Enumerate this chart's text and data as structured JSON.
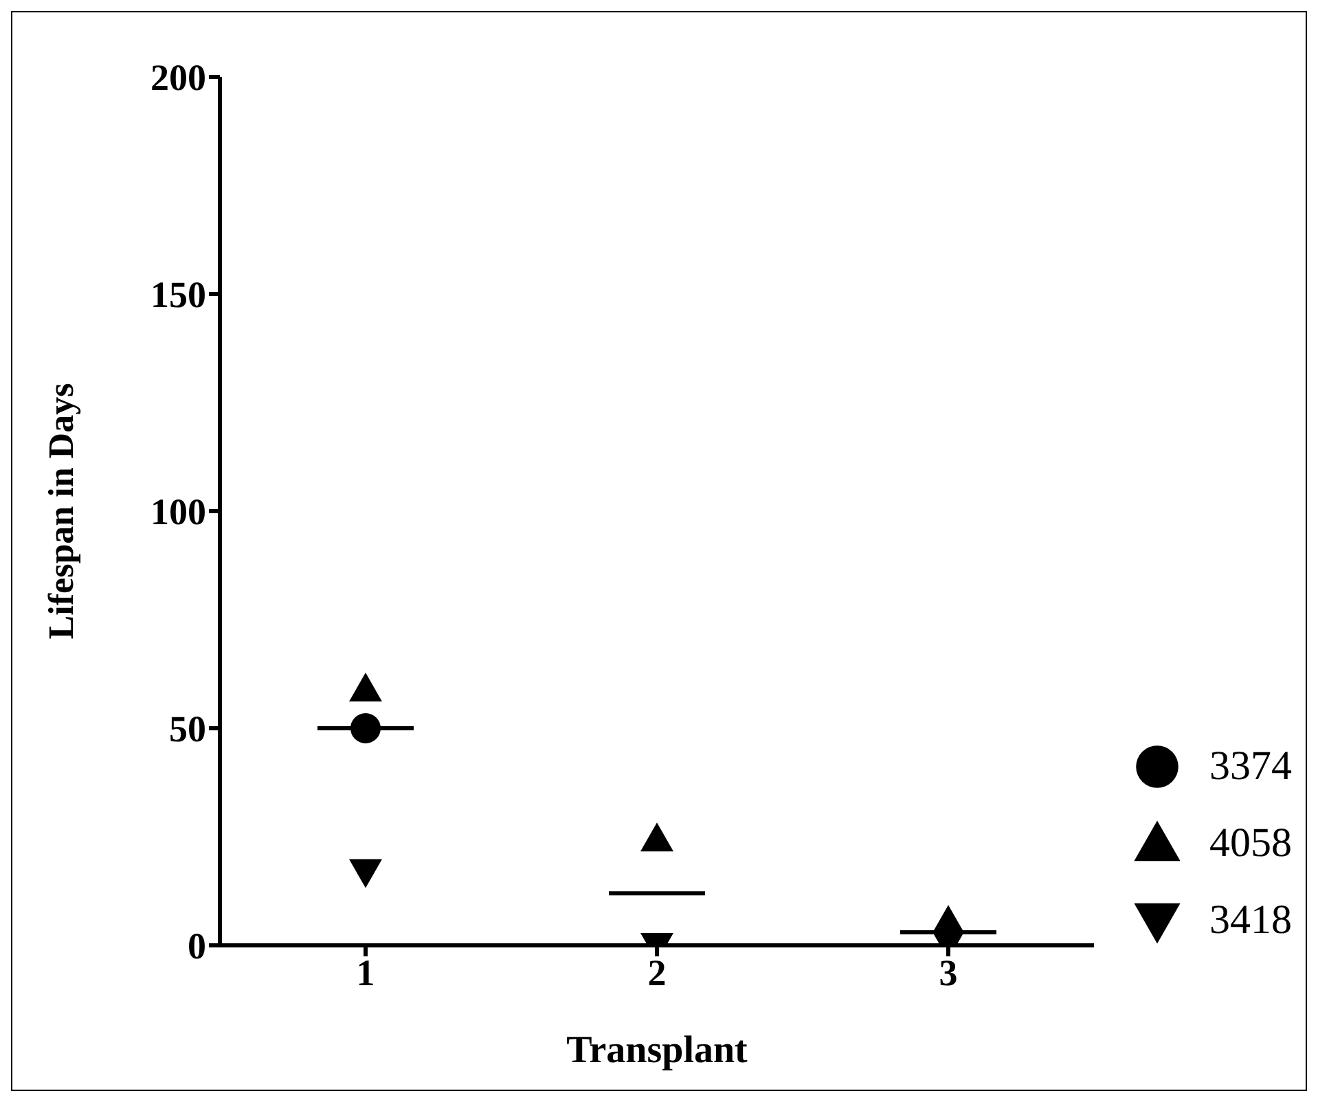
{
  "chart_data": {
    "type": "scatter",
    "xlabel": "Transplant",
    "ylabel": "Lifespan in Days",
    "categories": [
      "1",
      "2",
      "3"
    ],
    "ylim": [
      0,
      200
    ],
    "yticks": [
      0,
      50,
      100,
      150,
      200
    ],
    "legend": "right",
    "series": [
      {
        "name": "3374",
        "color": "#000000",
        "marker": "circle",
        "values": [
          50,
          null,
          null
        ]
      },
      {
        "name": "4058",
        "color": "#000000",
        "marker": "triangle",
        "values": [
          59,
          24.5,
          5.5
        ]
      },
      {
        "name": "3418",
        "color": "#000000",
        "marker": "triangle-down",
        "values": [
          17,
          0,
          0.5
        ]
      },
      {
        "type": "box",
        "color": "#000000",
        "boxes": [
          {
            "low": 50,
            "q1": 50,
            "median": 50,
            "q3": 50,
            "high": 50
          },
          {
            "low": 12,
            "q1": 12,
            "median": 12,
            "q3": 12,
            "high": 12
          },
          {
            "low": 3,
            "q1": 3,
            "median": 3,
            "q3": 3,
            "high": 3
          }
        ]
      }
    ]
  }
}
